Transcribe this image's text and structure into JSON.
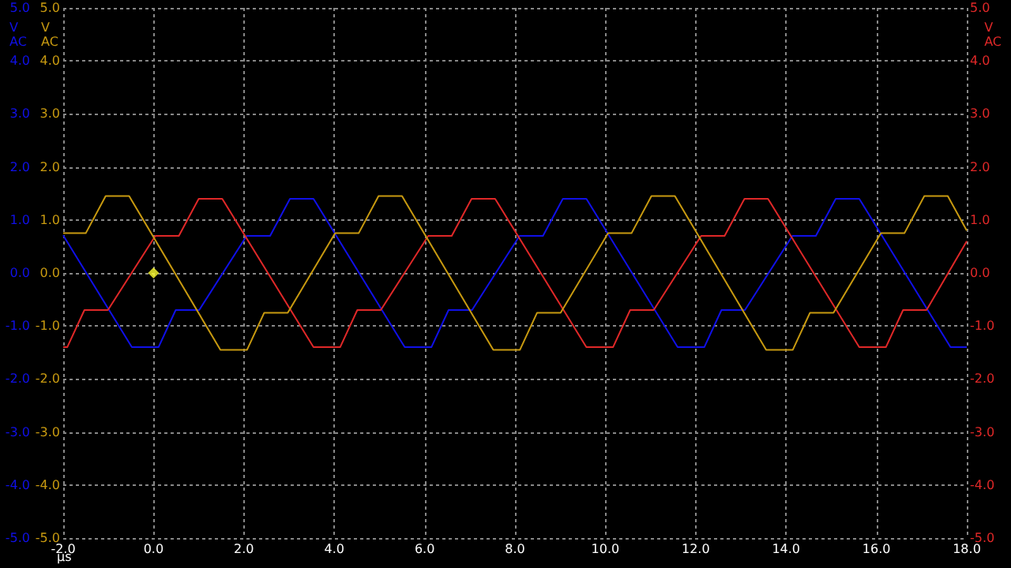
{
  "chart_data": {
    "type": "line",
    "xlabel": "µs",
    "ylabel": "V\nAC",
    "y2label": "V\nAC",
    "y3label": "V\nAC",
    "xlim": [
      -2,
      18
    ],
    "xticks": [
      {
        "value": -2,
        "label": "-2.0"
      },
      {
        "value": 0,
        "label": "0.0"
      },
      {
        "value": 2,
        "label": "2.0"
      },
      {
        "value": 4,
        "label": "4.0"
      },
      {
        "value": 6,
        "label": "6.0"
      },
      {
        "value": 8,
        "label": "8.0"
      },
      {
        "value": 10,
        "label": "10.0"
      },
      {
        "value": 12,
        "label": "12.0"
      },
      {
        "value": 14,
        "label": "14.0"
      },
      {
        "value": 16,
        "label": "16.0"
      },
      {
        "value": 18,
        "label": "18.0"
      }
    ],
    "ylim": [
      -5,
      5
    ],
    "yticks": [
      {
        "value": -5,
        "label": "-5.0"
      },
      {
        "value": -4,
        "label": "-4.0"
      },
      {
        "value": -3,
        "label": "-3.0"
      },
      {
        "value": -2,
        "label": "-2.0"
      },
      {
        "value": -1,
        "label": "-1.0"
      },
      {
        "value": 0,
        "label": "0.0"
      },
      {
        "value": 1,
        "label": "1.0"
      },
      {
        "value": 2,
        "label": "2.0"
      },
      {
        "value": 3,
        "label": "3.0"
      },
      {
        "value": 4,
        "label": "4.0"
      },
      {
        "value": 5,
        "label": "5.0"
      }
    ],
    "y2lim": [
      -5,
      5
    ],
    "y2ticks": [
      {
        "value": -5,
        "label": "-5.0"
      },
      {
        "value": -4,
        "label": "-4.0"
      },
      {
        "value": -3,
        "label": "-3.0"
      },
      {
        "value": -2,
        "label": "-2.0"
      },
      {
        "value": -1,
        "label": "-1.0"
      },
      {
        "value": 0,
        "label": "0.0"
      },
      {
        "value": 1,
        "label": "1.0"
      },
      {
        "value": 2,
        "label": "2.0"
      },
      {
        "value": 3,
        "label": "3.0"
      },
      {
        "value": 4,
        "label": "4.0"
      },
      {
        "value": 5,
        "label": "5.0"
      }
    ],
    "y3lim": [
      -5,
      5
    ],
    "y3ticks": [
      {
        "value": -5,
        "label": "-5.0"
      },
      {
        "value": -4,
        "label": "-4.0"
      },
      {
        "value": -3,
        "label": "-3.0"
      },
      {
        "value": -2,
        "label": "-2.0"
      },
      {
        "value": -1,
        "label": "-1.0"
      },
      {
        "value": 0,
        "label": "0.0"
      },
      {
        "value": 1,
        "label": "1.0"
      },
      {
        "value": 2,
        "label": "2.0"
      },
      {
        "value": 3,
        "label": "3.0"
      },
      {
        "value": 4,
        "label": "4.0"
      },
      {
        "value": 5,
        "label": "5.0"
      }
    ],
    "grid": true,
    "marker": "none",
    "line_style": "solid",
    "series": [
      {
        "color": "#1010e8",
        "axis": "y",
        "x": [
          -2,
          -0.48,
          0.11,
          0.49,
          1.01,
          2.06,
          2.58,
          3.02,
          3.54,
          5.56,
          6.15,
          6.53,
          7.05,
          8.1,
          8.62,
          9.06,
          9.58,
          11.6,
          12.19,
          12.57,
          13.09,
          14.14,
          14.66,
          15.1,
          15.62,
          17.64,
          18
        ],
        "values": [
          0.71,
          -1.4,
          -1.4,
          -0.7,
          -0.7,
          0.7,
          0.7,
          1.4,
          1.4,
          -1.4,
          -1.4,
          -0.7,
          -0.7,
          0.7,
          0.7,
          1.4,
          1.4,
          -1.4,
          -1.4,
          -0.7,
          -0.7,
          0.7,
          0.7,
          1.4,
          1.4,
          -1.4,
          -1.4
        ]
      },
      {
        "color": "#e02828",
        "axis": "y2",
        "x": [
          -2,
          -1.91,
          -1.53,
          -1.01,
          0.04,
          0.56,
          1,
          1.52,
          3.54,
          4.13,
          4.51,
          5.03,
          6.08,
          6.6,
          7.04,
          7.56,
          9.58,
          10.17,
          10.55,
          11.07,
          12.12,
          12.64,
          13.08,
          13.6,
          15.62,
          16.21,
          16.59,
          17.11,
          18
        ],
        "values": [
          -1.4,
          -1.4,
          -0.7,
          -0.7,
          0.7,
          0.7,
          1.4,
          1.4,
          -1.4,
          -1.4,
          -0.7,
          -0.7,
          0.7,
          0.7,
          1.4,
          1.4,
          -1.4,
          -1.4,
          -0.7,
          -0.7,
          0.7,
          0.7,
          1.4,
          1.4,
          -1.4,
          -1.4,
          -0.7,
          -0.7,
          0.6
        ]
      },
      {
        "color": "#c89a10",
        "axis": "y3",
        "x": [
          -2,
          -1.5,
          -1.06,
          -0.54,
          1.48,
          2.07,
          2.45,
          2.97,
          4.02,
          4.54,
          4.98,
          5.5,
          7.52,
          8.11,
          8.49,
          9.01,
          10.06,
          10.58,
          11.02,
          11.54,
          13.56,
          14.15,
          14.53,
          15.05,
          16.1,
          16.62,
          17.06,
          17.58,
          18
        ],
        "values": [
          0.75,
          0.75,
          1.45,
          1.45,
          -1.45,
          -1.45,
          -0.75,
          -0.75,
          0.75,
          0.75,
          1.45,
          1.45,
          -1.45,
          -1.45,
          -0.75,
          -0.75,
          0.75,
          0.75,
          1.45,
          1.45,
          -1.45,
          -1.45,
          -0.75,
          -0.75,
          0.75,
          0.75,
          1.45,
          1.45,
          0.8
        ]
      },
      {
        "type": "scatter",
        "marker": "diamond",
        "color": "#ffff30",
        "axis": "y3",
        "x": [
          0
        ],
        "values": [
          0
        ]
      }
    ]
  }
}
